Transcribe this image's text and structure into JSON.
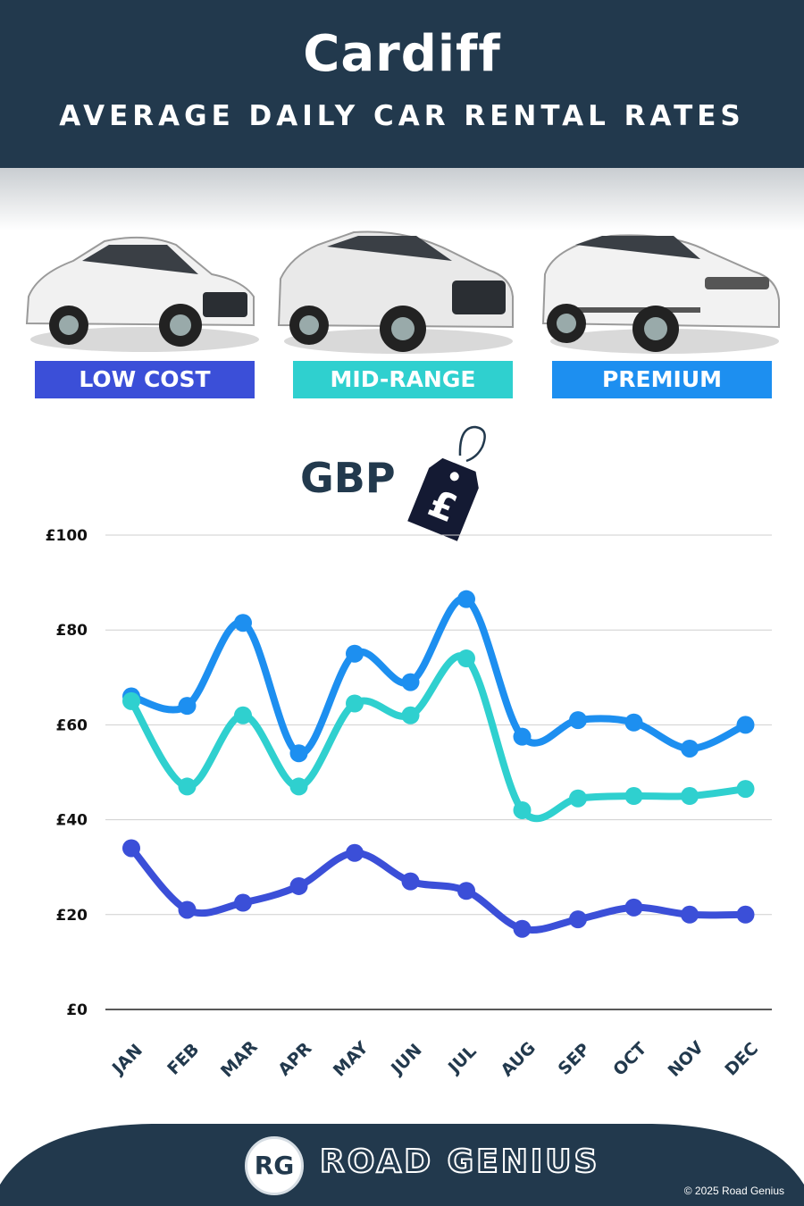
{
  "header": {
    "city": "Cardiff",
    "subtitle": "AVERAGE DAILY CAR RENTAL RATES"
  },
  "categories": [
    {
      "label": "LOW COST",
      "color": "#3b4fd8",
      "icon": "hatchback-car-image"
    },
    {
      "label": "MID-RANGE",
      "color": "#2fd0cf",
      "icon": "suv-car-image"
    },
    {
      "label": "PREMIUM",
      "color": "#1d8ff0",
      "icon": "luxury-suv-car-image"
    }
  ],
  "currency": {
    "label": "GBP",
    "tag_symbol": "£",
    "icon": "price-tag-icon"
  },
  "chart_data": {
    "type": "line",
    "categories": [
      "JAN",
      "FEB",
      "MAR",
      "APR",
      "MAY",
      "JUN",
      "JUL",
      "AUG",
      "SEP",
      "OCT",
      "NOV",
      "DEC"
    ],
    "y_tick_labels": [
      "£0",
      "£20",
      "£40",
      "£60",
      "£80",
      "£100"
    ],
    "ylim": [
      0,
      100
    ],
    "grid": true,
    "series": [
      {
        "name": "PREMIUM",
        "color": "#1d8ff0",
        "values": [
          66,
          64,
          81.5,
          54,
          75,
          69,
          86.5,
          57.5,
          61,
          60.5,
          55,
          60
        ]
      },
      {
        "name": "MID-RANGE",
        "color": "#2fd0cf",
        "values": [
          65,
          47,
          62,
          47,
          64.5,
          62,
          74,
          42,
          44.5,
          45,
          45,
          46.5
        ]
      },
      {
        "name": "LOW COST",
        "color": "#3b4fd8",
        "values": [
          34,
          21,
          22.5,
          26,
          33,
          27,
          25,
          17,
          19,
          21.5,
          20,
          20
        ]
      }
    ]
  },
  "footer": {
    "logo_text": "RG",
    "brand": "ROAD GENIUS",
    "copyright": "© 2025 Road Genius"
  }
}
